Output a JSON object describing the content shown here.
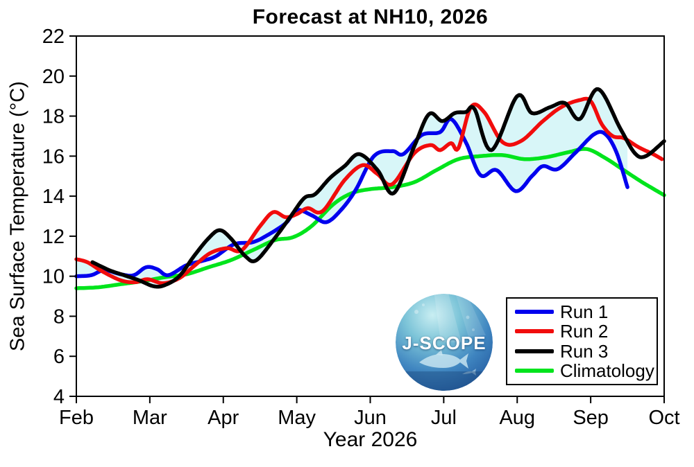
{
  "page": {
    "background": "#ffffff"
  },
  "logo": {
    "text": "J-SCOPE"
  },
  "chart_data": {
    "type": "line",
    "title": "Forecast at NH10, 2026",
    "xlabel": "Year 2026",
    "ylabel": "Sea Surface Temperature (°C)",
    "x_unit": "month index (2 = Feb 1, 10 = Oct 1), year 2026",
    "xlim": [
      2,
      10
    ],
    "ylim": [
      4,
      22
    ],
    "grid": false,
    "axis_color": "#000000",
    "x_tick_months": [
      2,
      3,
      4,
      5,
      6,
      7,
      8,
      9,
      10
    ],
    "x_tick_labels": [
      "Feb",
      "Mar",
      "Apr",
      "May",
      "Jun",
      "Jul",
      "Aug",
      "Sep",
      "Oct"
    ],
    "y_ticks": [
      4,
      6,
      8,
      10,
      12,
      14,
      16,
      18,
      20,
      22
    ],
    "legend_position": "inside bottom-right",
    "band": {
      "description": "shaded envelope (min to max) of Run 1-3 ensemble spread",
      "color": "#d8f6f8",
      "x_start": 2.0,
      "x_end": 9.5
    },
    "series": [
      {
        "name": "Run 1",
        "color": "#0000ee",
        "in_band": true,
        "points": [
          [
            2.0,
            10.0
          ],
          [
            2.2,
            10.05
          ],
          [
            2.38,
            10.3
          ],
          [
            2.6,
            10.1
          ],
          [
            2.78,
            10.05
          ],
          [
            2.95,
            10.45
          ],
          [
            3.1,
            10.35
          ],
          [
            3.25,
            10.05
          ],
          [
            3.5,
            10.55
          ],
          [
            3.75,
            10.8
          ],
          [
            3.9,
            11.0
          ],
          [
            4.15,
            11.6
          ],
          [
            4.4,
            11.7
          ],
          [
            4.6,
            12.05
          ],
          [
            4.85,
            12.65
          ],
          [
            5.0,
            13.3
          ],
          [
            5.2,
            13.05
          ],
          [
            5.4,
            12.7
          ],
          [
            5.6,
            13.3
          ],
          [
            5.8,
            14.3
          ],
          [
            6.05,
            16.0
          ],
          [
            6.3,
            16.25
          ],
          [
            6.45,
            16.1
          ],
          [
            6.7,
            17.05
          ],
          [
            6.95,
            17.2
          ],
          [
            7.1,
            17.85
          ],
          [
            7.3,
            16.7
          ],
          [
            7.5,
            15.05
          ],
          [
            7.72,
            15.3
          ],
          [
            7.98,
            14.25
          ],
          [
            8.2,
            15.0
          ],
          [
            8.35,
            15.5
          ],
          [
            8.55,
            15.35
          ],
          [
            8.8,
            16.2
          ],
          [
            9.05,
            17.1
          ],
          [
            9.2,
            17.1
          ],
          [
            9.35,
            16.2
          ],
          [
            9.5,
            14.45
          ]
        ]
      },
      {
        "name": "Run 2",
        "color": "#f10c0c",
        "in_band": true,
        "points": [
          [
            2.0,
            10.85
          ],
          [
            2.15,
            10.7
          ],
          [
            2.35,
            10.25
          ],
          [
            2.6,
            9.8
          ],
          [
            2.8,
            9.7
          ],
          [
            2.97,
            9.85
          ],
          [
            3.18,
            9.65
          ],
          [
            3.4,
            9.9
          ],
          [
            3.6,
            10.5
          ],
          [
            3.82,
            11.15
          ],
          [
            4.05,
            11.4
          ],
          [
            4.25,
            11.3
          ],
          [
            4.5,
            12.5
          ],
          [
            4.68,
            13.2
          ],
          [
            4.85,
            12.95
          ],
          [
            5.0,
            13.1
          ],
          [
            5.15,
            13.4
          ],
          [
            5.35,
            13.25
          ],
          [
            5.65,
            14.8
          ],
          [
            5.9,
            15.55
          ],
          [
            6.1,
            15.1
          ],
          [
            6.3,
            14.6
          ],
          [
            6.6,
            16.15
          ],
          [
            6.82,
            16.55
          ],
          [
            6.95,
            16.3
          ],
          [
            7.1,
            16.65
          ],
          [
            7.2,
            16.4
          ],
          [
            7.37,
            18.45
          ],
          [
            7.55,
            18.2
          ],
          [
            7.8,
            16.7
          ],
          [
            8.05,
            16.75
          ],
          [
            8.35,
            17.75
          ],
          [
            8.6,
            18.45
          ],
          [
            8.85,
            18.8
          ],
          [
            9.0,
            18.75
          ],
          [
            9.15,
            17.6
          ],
          [
            9.3,
            17.0
          ],
          [
            9.45,
            16.9
          ],
          [
            9.65,
            16.45
          ],
          [
            9.85,
            16.1
          ],
          [
            9.97,
            15.85
          ]
        ]
      },
      {
        "name": "Run 3",
        "color": "#000000",
        "in_band": true,
        "points": [
          [
            2.22,
            10.7
          ],
          [
            2.45,
            10.3
          ],
          [
            2.65,
            10.05
          ],
          [
            2.85,
            9.8
          ],
          [
            3.05,
            9.5
          ],
          [
            3.2,
            9.55
          ],
          [
            3.4,
            10.0
          ],
          [
            3.6,
            11.0
          ],
          [
            3.8,
            11.9
          ],
          [
            3.95,
            12.3
          ],
          [
            4.1,
            11.9
          ],
          [
            4.3,
            11.0
          ],
          [
            4.45,
            10.8
          ],
          [
            4.7,
            11.9
          ],
          [
            4.9,
            12.9
          ],
          [
            5.1,
            13.9
          ],
          [
            5.25,
            14.1
          ],
          [
            5.45,
            14.9
          ],
          [
            5.65,
            15.5
          ],
          [
            5.85,
            16.1
          ],
          [
            6.1,
            15.3
          ],
          [
            6.32,
            14.15
          ],
          [
            6.6,
            16.5
          ],
          [
            6.8,
            18.1
          ],
          [
            6.98,
            17.75
          ],
          [
            7.15,
            18.15
          ],
          [
            7.3,
            18.2
          ],
          [
            7.42,
            18.35
          ],
          [
            7.65,
            16.3
          ],
          [
            8.0,
            19.0
          ],
          [
            8.2,
            18.15
          ],
          [
            8.45,
            18.45
          ],
          [
            8.65,
            18.65
          ],
          [
            8.85,
            17.85
          ],
          [
            9.1,
            19.35
          ],
          [
            9.4,
            17.4
          ],
          [
            9.6,
            16.15
          ],
          [
            9.75,
            16.0
          ],
          [
            10.0,
            16.75
          ]
        ]
      },
      {
        "name": "Climatology",
        "color": "#00e41c",
        "in_band": false,
        "points": [
          [
            2.0,
            9.4
          ],
          [
            2.3,
            9.45
          ],
          [
            2.6,
            9.6
          ],
          [
            2.9,
            9.75
          ],
          [
            3.2,
            9.95
          ],
          [
            3.5,
            10.1
          ],
          [
            3.8,
            10.45
          ],
          [
            4.1,
            10.8
          ],
          [
            4.4,
            11.3
          ],
          [
            4.7,
            11.8
          ],
          [
            4.95,
            11.95
          ],
          [
            5.2,
            12.5
          ],
          [
            5.5,
            13.6
          ],
          [
            5.75,
            14.15
          ],
          [
            6.0,
            14.35
          ],
          [
            6.3,
            14.45
          ],
          [
            6.6,
            14.7
          ],
          [
            6.9,
            15.3
          ],
          [
            7.2,
            15.85
          ],
          [
            7.5,
            16.0
          ],
          [
            7.8,
            16.05
          ],
          [
            8.1,
            15.85
          ],
          [
            8.4,
            15.95
          ],
          [
            8.7,
            16.2
          ],
          [
            8.95,
            16.35
          ],
          [
            9.2,
            15.9
          ],
          [
            9.45,
            15.3
          ],
          [
            9.7,
            14.7
          ],
          [
            10.0,
            14.05
          ]
        ]
      }
    ]
  }
}
